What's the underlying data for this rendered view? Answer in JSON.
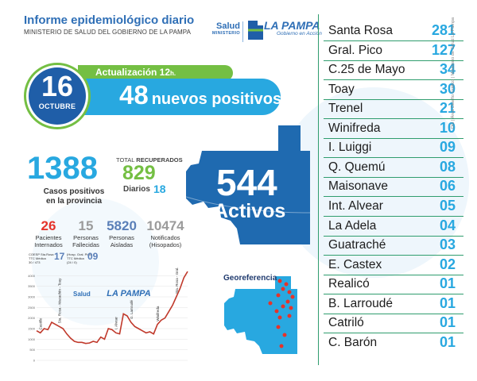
{
  "header": {
    "title": "Informe epidemiológico diario",
    "subtitle": "MINISTERIO DE SALUD DEL GOBIERNO DE LA PAMPA",
    "logo_salud": "Salud",
    "logo_ministerio": "MINISTERIO",
    "logo_province": "LA PAMPA",
    "logo_tagline": "Gobierno en Acción"
  },
  "date": {
    "day": "16",
    "month": "OCTUBRE"
  },
  "update": {
    "label": "Actualización 12",
    "unit": "h."
  },
  "new_positives": {
    "value": "48",
    "label": "nuevos positivos"
  },
  "totals": {
    "cases": "1388",
    "cases_label_1": "Casos positivos",
    "cases_label_2": "en la provincia",
    "recovered_prefix": "TOTAL",
    "recovered_label": "RECUPERADOS",
    "recovered": "829",
    "daily_label": "Diarios",
    "daily": "18"
  },
  "stats": [
    {
      "value": "26",
      "label_1": "Pacientes",
      "label_2": "Internados",
      "color": "#e5332a"
    },
    {
      "value": "15",
      "label_1": "Personas",
      "label_2": "Fallecidas",
      "color": "#9b9b9b"
    },
    {
      "value": "5820",
      "label_1": "Personas",
      "label_2": "Aisladas",
      "color": "#5a7fb8"
    },
    {
      "value": "10474",
      "label_1": "Notificados",
      "label_2": "(Hisopados)",
      "color": "#9b9b9b"
    }
  ],
  "active": {
    "value": "544",
    "label": "Activos"
  },
  "georef_label": "Georeferencia",
  "chart_notes": {
    "left_label_1": "COESP Sta.Rosa",
    "left_label_2": "TTC Médica",
    "left_label_3": "30 / 473",
    "left_value": "17",
    "right_label_1": "(Hosp. Gral. Pico)",
    "right_label_2": "TTC Médica",
    "right_label_3": "(24 / 0)",
    "right_value": "09"
  },
  "chart_data": {
    "type": "line",
    "x": [
      0,
      1,
      2,
      3,
      4,
      5,
      6,
      7,
      8,
      9,
      10,
      11,
      12,
      13,
      14,
      15,
      16,
      17,
      18,
      19,
      20,
      21,
      22,
      23,
      24,
      25,
      26,
      27,
      28,
      29,
      30,
      31,
      32,
      33,
      34,
      35,
      36,
      37,
      38,
      39,
      40
    ],
    "y": [
      1400,
      1300,
      1500,
      1450,
      1800,
      1700,
      1600,
      1500,
      1250,
      1050,
      900,
      850,
      850,
      800,
      820,
      900,
      850,
      1100,
      1000,
      1500,
      1450,
      1300,
      1250,
      2200,
      2100,
      1800,
      1600,
      1500,
      1400,
      1300,
      1350,
      1250,
      1700,
      1900,
      2000,
      2300,
      2600,
      3000,
      3400,
      3900,
      4200
    ],
    "ylim": [
      0,
      4200
    ],
    "y_ticks": [
      "0",
      "500",
      "1000",
      "1500",
      "2000",
      "2500",
      "3000",
      "3500",
      "4000"
    ],
    "annotations": [
      {
        "text": "Castillo",
        "x": 1
      },
      {
        "text": "Sta. Rosa - Macachín - Toay",
        "x": 6
      },
      {
        "text": "I. Alvear",
        "x": 21
      },
      {
        "text": "G. Larroudé",
        "x": 25
      },
      {
        "text": "Winifreda",
        "x": 32
      },
      {
        "text": "Sta. Rosa - Gral. Pico",
        "x": 37
      }
    ],
    "color": "#c0392b"
  },
  "localities": [
    {
      "name": "Santa Rosa",
      "count": "281"
    },
    {
      "name": "Gral. Pico",
      "count": "127"
    },
    {
      "name": "C.25 de Mayo",
      "count": "34"
    },
    {
      "name": "Toay",
      "count": "30"
    },
    {
      "name": "Trenel",
      "count": "21"
    },
    {
      "name": "Winifreda",
      "count": "10"
    },
    {
      "name": "I. Luiggi",
      "count": "09"
    },
    {
      "name": "Q. Quemú",
      "count": "08"
    },
    {
      "name": "Maisonave",
      "count": "06"
    },
    {
      "name": "Int. Alvear",
      "count": "05"
    },
    {
      "name": "La Adela",
      "count": "04"
    },
    {
      "name": "Guatraché",
      "count": "03"
    },
    {
      "name": "E. Castex",
      "count": "02"
    },
    {
      "name": "Realicó",
      "count": "01"
    },
    {
      "name": "B. Larroudé",
      "count": "01"
    },
    {
      "name": "Catriló",
      "count": "01"
    },
    {
      "name": "C. Barón",
      "count": "01"
    }
  ],
  "credit": "DG | Área Diseño Gráfico | Ministerio de Salud La Pampa"
}
